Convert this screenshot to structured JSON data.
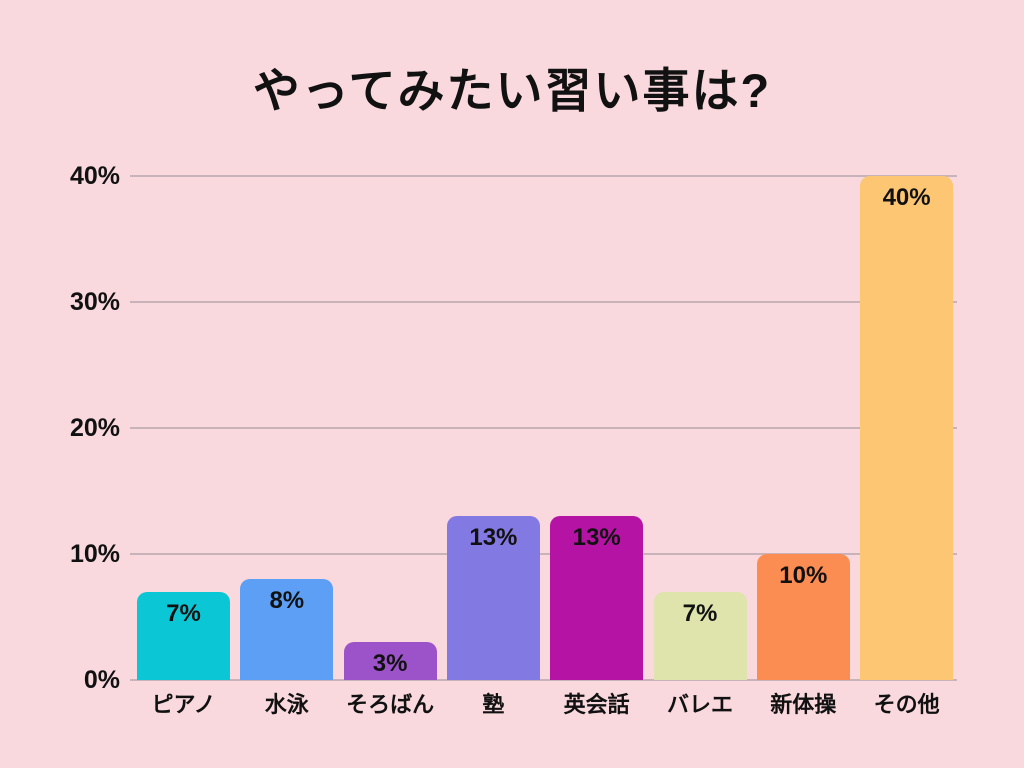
{
  "chart_data": {
    "type": "bar",
    "title": "やってみたい習い事は?",
    "categories": [
      "ピアノ",
      "水泳",
      "そろばん",
      "塾",
      "英会話",
      "バレエ",
      "新体操",
      "その他"
    ],
    "values": [
      7,
      8,
      3,
      13,
      13,
      7,
      10,
      40
    ],
    "bar_labels": [
      "7%",
      "8%",
      "3%",
      "13%",
      "13%",
      "7%",
      "10%",
      "40%"
    ],
    "bar_colors": [
      "#0bc7d6",
      "#5c9ff5",
      "#9c53ca",
      "#8379e2",
      "#b513a4",
      "#dfe3ac",
      "#fb8c52",
      "#fcc673"
    ],
    "xlabel": "",
    "ylabel": "",
    "ylim": [
      0,
      40
    ],
    "yticks": [
      "0%",
      "10%",
      "20%",
      "30%",
      "40%"
    ],
    "ytick_values": [
      0,
      10,
      20,
      30,
      40
    ],
    "grid": true,
    "legend": "none",
    "value_label_position": "inside-top",
    "background_color": "#f9d9de",
    "gridline_color": "#c9b3ba",
    "text_color": "#111111"
  }
}
